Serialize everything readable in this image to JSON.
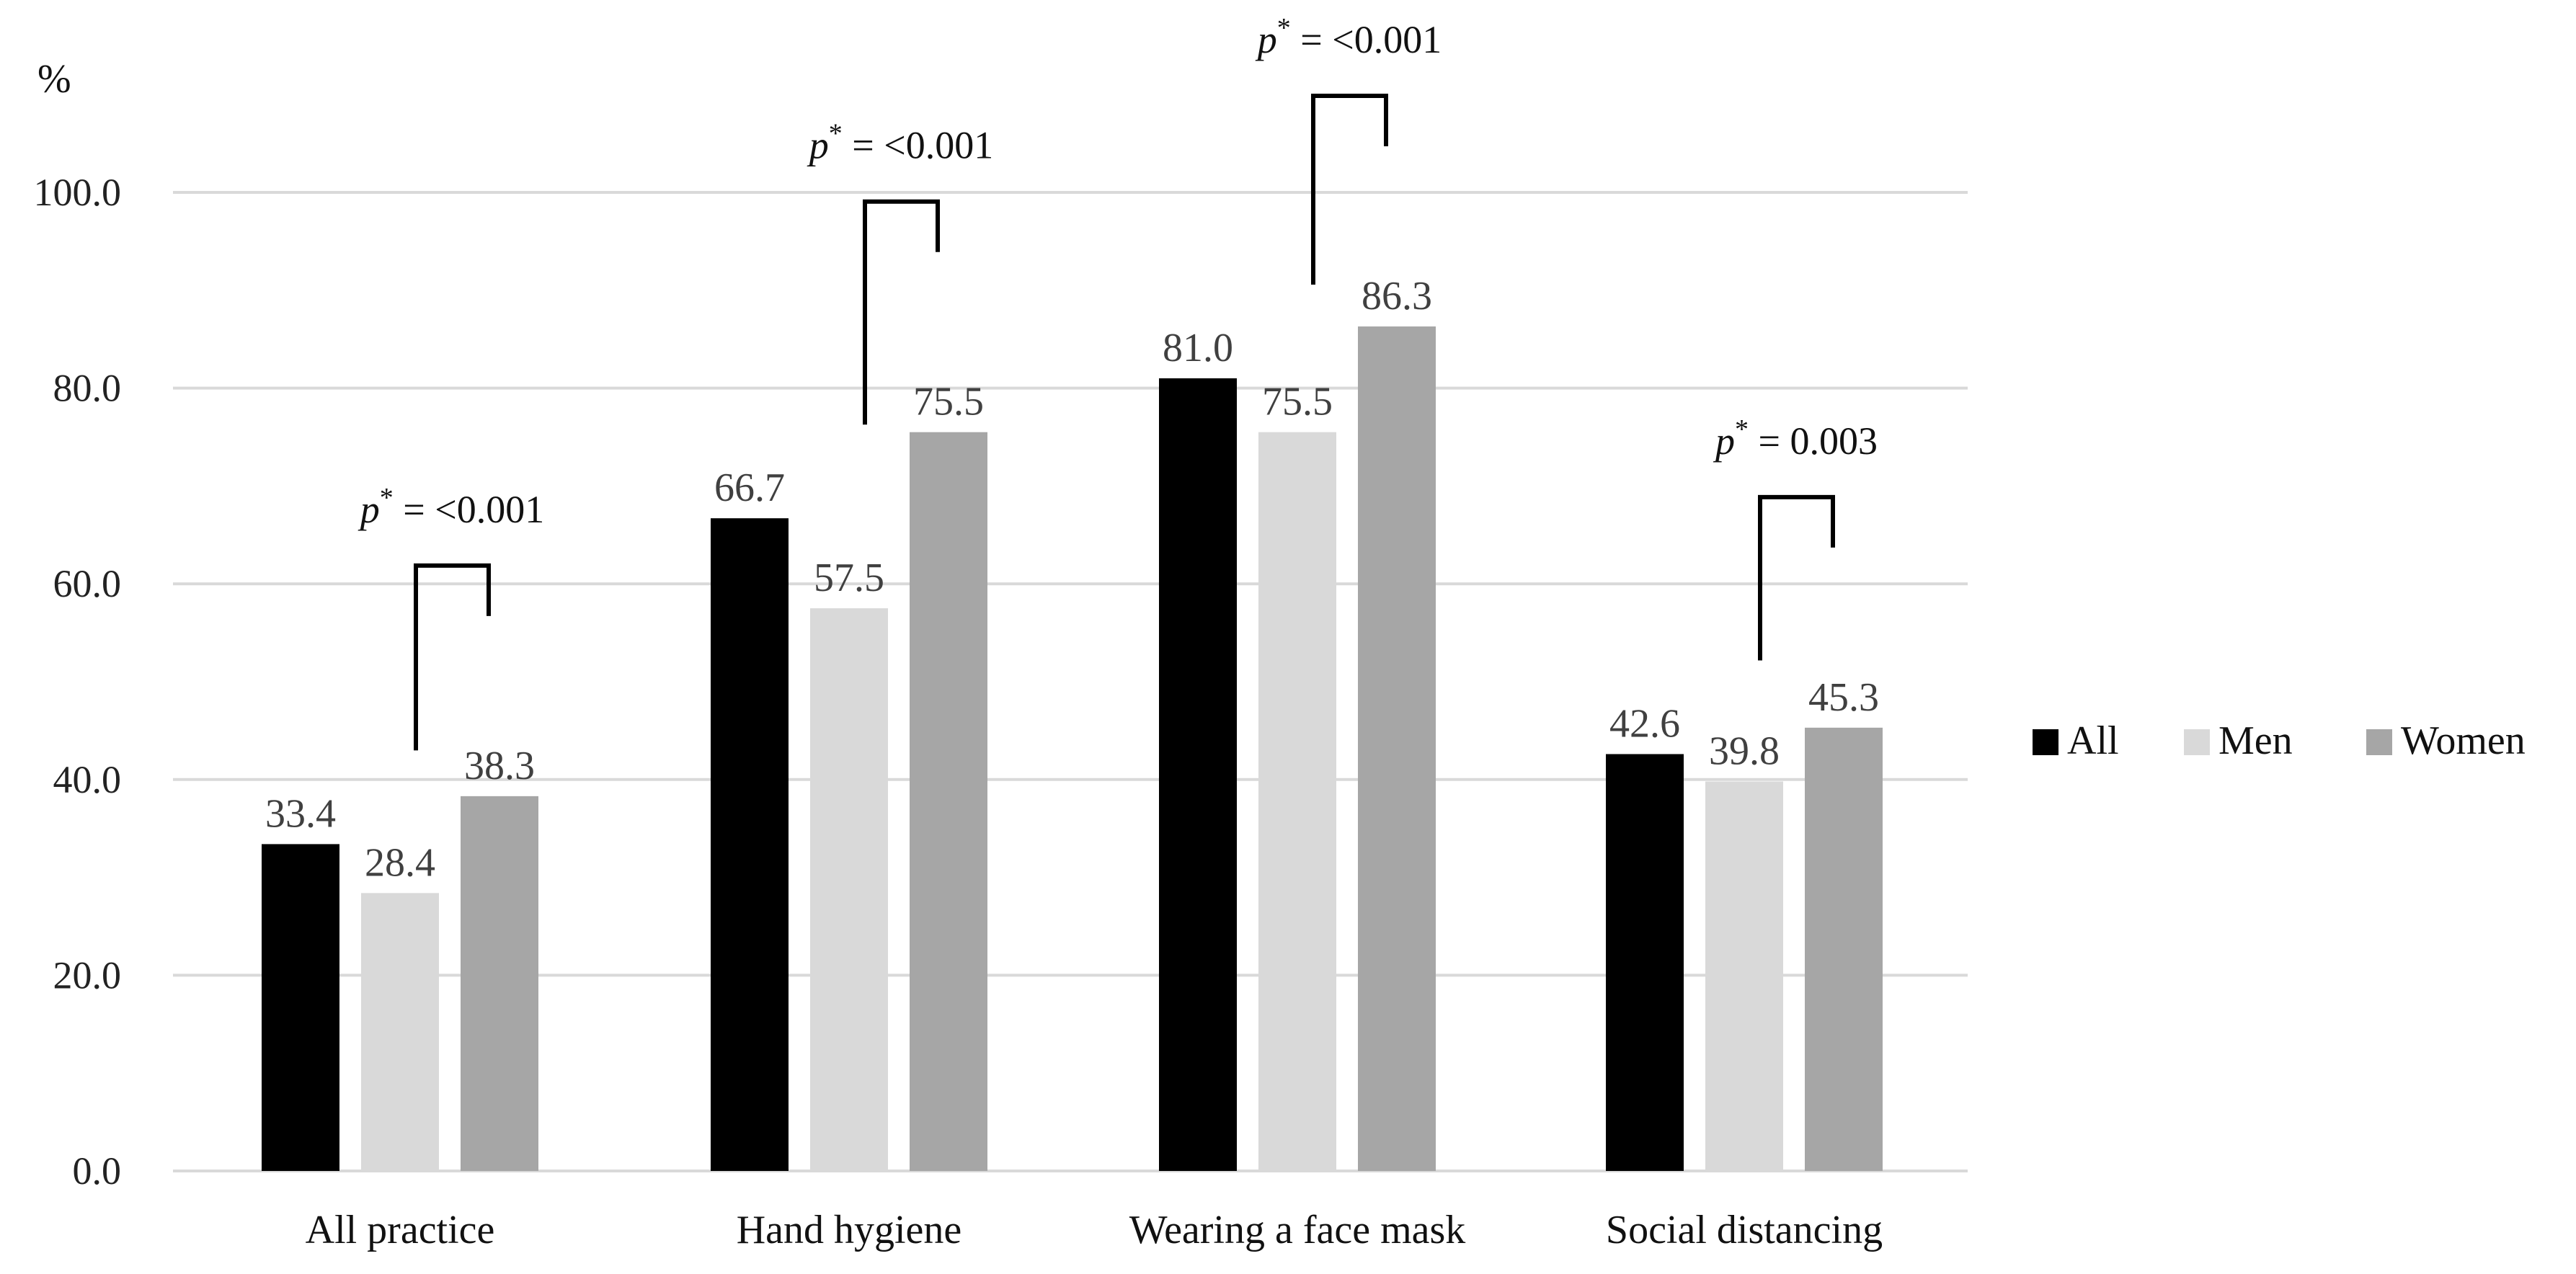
{
  "chart_data": {
    "type": "bar",
    "ylabel": "%",
    "ylim": [
      0,
      100
    ],
    "yticks": [
      "0.0",
      "20.0",
      "40.0",
      "60.0",
      "80.0",
      "100.0"
    ],
    "grid": true,
    "legend_position": "right",
    "categories": [
      "All practice",
      "Hand hygiene",
      "Wearing a face mask",
      "Social distancing"
    ],
    "series": [
      {
        "name": "All",
        "color": "#000000",
        "values": [
          33.4,
          66.7,
          81.0,
          42.6
        ],
        "labels": [
          "33.4",
          "66.7",
          "81.0",
          "42.6"
        ]
      },
      {
        "name": "Men",
        "color": "#d9d9d9",
        "values": [
          28.4,
          57.5,
          75.5,
          39.8
        ],
        "labels": [
          "28.4",
          "57.5",
          "75.5",
          "39.8"
        ]
      },
      {
        "name": "Women",
        "color": "#a6a6a6",
        "values": [
          38.3,
          75.5,
          86.3,
          45.3
        ],
        "labels": [
          "38.3",
          "75.5",
          "86.3",
          "45.3"
        ]
      }
    ],
    "annotations": [
      {
        "category": "All practice",
        "text_p": "p",
        "text_sup": "*",
        "text_rest": " = <0.001"
      },
      {
        "category": "Hand hygiene",
        "text_p": "p",
        "text_sup": "*",
        "text_rest": " = <0.001"
      },
      {
        "category": "Wearing a face mask",
        "text_p": "p",
        "text_sup": "*",
        "text_rest": " = <0.001"
      },
      {
        "category": "Social distancing",
        "text_p": "p",
        "text_sup": "*",
        "text_rest": " = 0.003"
      }
    ]
  }
}
